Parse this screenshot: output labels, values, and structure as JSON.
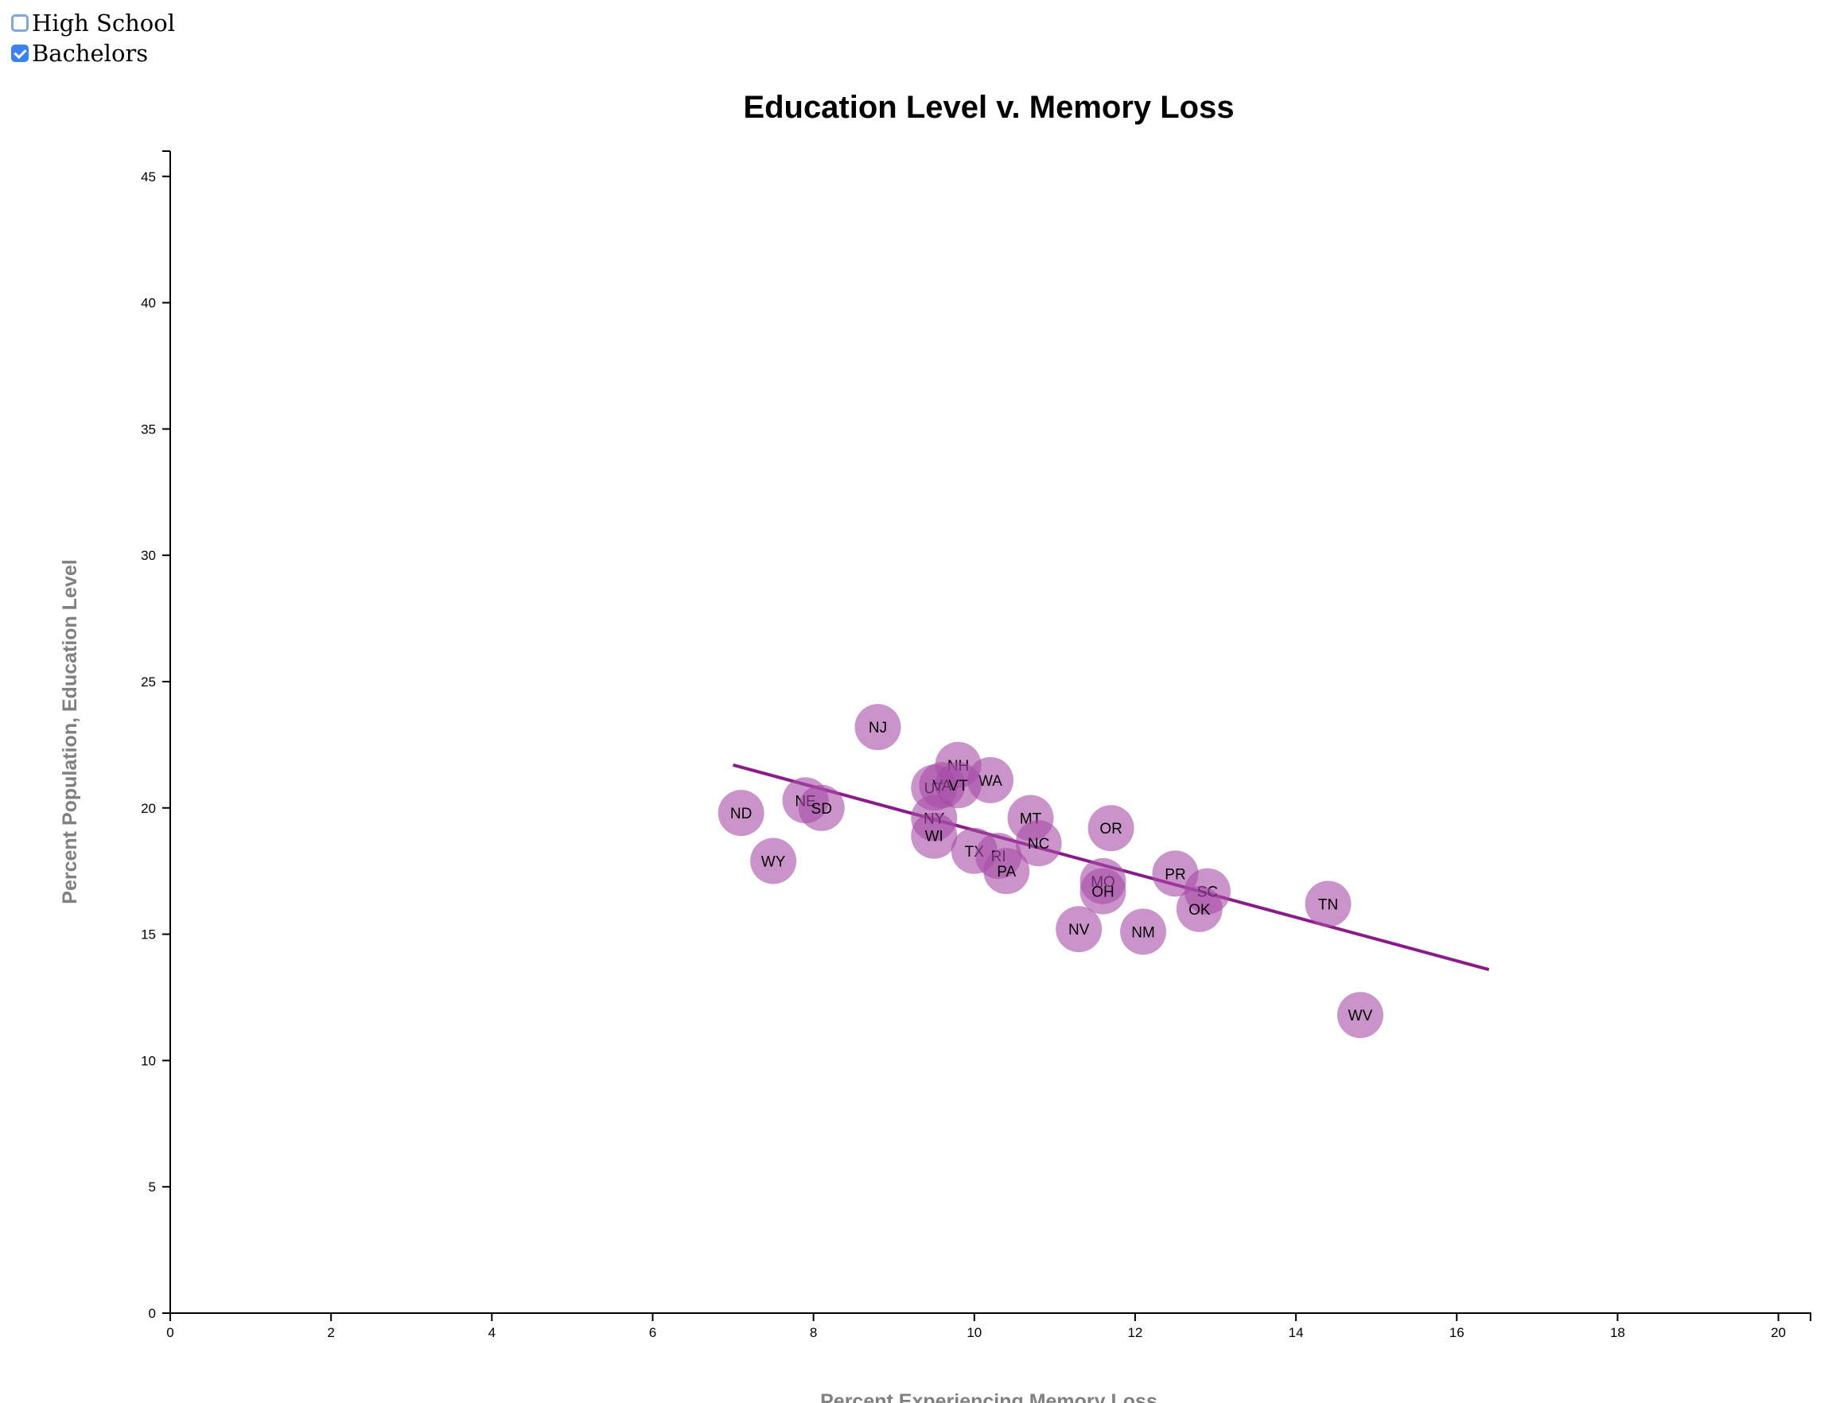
{
  "controls": [
    {
      "label": "High School",
      "checked": false
    },
    {
      "label": "Bachelors",
      "checked": true
    }
  ],
  "colors": {
    "point": "#a64ca6",
    "trendline": "#8b1a8b",
    "checkbox_accent": "#3b82f0"
  },
  "chart_data": {
    "type": "scatter",
    "title": "Education Level v. Memory Loss",
    "xlabel": "Percent Experiencing Memory Loss",
    "ylabel": "Percent Population, Education Level",
    "xlim": [
      0,
      20.4
    ],
    "ylim": [
      0,
      46
    ],
    "xticks": [
      0,
      2,
      4,
      6,
      8,
      10,
      12,
      14,
      16,
      18,
      20
    ],
    "yticks": [
      0,
      5,
      10,
      15,
      20,
      25,
      30,
      35,
      40,
      45
    ],
    "grid": false,
    "points": [
      {
        "label": "NJ",
        "x": 8.8,
        "y": 23.2
      },
      {
        "label": "NH",
        "x": 9.8,
        "y": 21.7
      },
      {
        "label": "WA",
        "x": 10.2,
        "y": 21.1
      },
      {
        "label": "UT",
        "x": 9.5,
        "y": 20.8
      },
      {
        "label": "VA",
        "x": 9.6,
        "y": 20.9
      },
      {
        "label": "VT",
        "x": 9.8,
        "y": 20.9
      },
      {
        "label": "NE",
        "x": 7.9,
        "y": 20.3
      },
      {
        "label": "SD",
        "x": 8.1,
        "y": 20.0
      },
      {
        "label": "ND",
        "x": 7.1,
        "y": 19.8
      },
      {
        "label": "NY",
        "x": 9.5,
        "y": 19.6
      },
      {
        "label": "MT",
        "x": 10.7,
        "y": 19.6
      },
      {
        "label": "OR",
        "x": 11.7,
        "y": 19.2
      },
      {
        "label": "WI",
        "x": 9.5,
        "y": 18.9
      },
      {
        "label": "NC",
        "x": 10.8,
        "y": 18.6
      },
      {
        "label": "TX",
        "x": 10.0,
        "y": 18.3
      },
      {
        "label": "RI",
        "x": 10.3,
        "y": 18.1
      },
      {
        "label": "WY",
        "x": 7.5,
        "y": 17.9
      },
      {
        "label": "PA",
        "x": 10.4,
        "y": 17.5
      },
      {
        "label": "PR",
        "x": 12.5,
        "y": 17.4
      },
      {
        "label": "MO",
        "x": 11.6,
        "y": 17.1
      },
      {
        "label": "SC",
        "x": 12.9,
        "y": 16.7
      },
      {
        "label": "OH",
        "x": 11.6,
        "y": 16.7
      },
      {
        "label": "TN",
        "x": 14.4,
        "y": 16.2
      },
      {
        "label": "OK",
        "x": 12.8,
        "y": 16.0
      },
      {
        "label": "NV",
        "x": 11.3,
        "y": 15.2
      },
      {
        "label": "NM",
        "x": 12.1,
        "y": 15.1
      },
      {
        "label": "WV",
        "x": 14.8,
        "y": 11.8
      }
    ],
    "trendline": {
      "x": [
        7.0,
        16.4
      ],
      "y": [
        21.7,
        13.6
      ]
    }
  }
}
